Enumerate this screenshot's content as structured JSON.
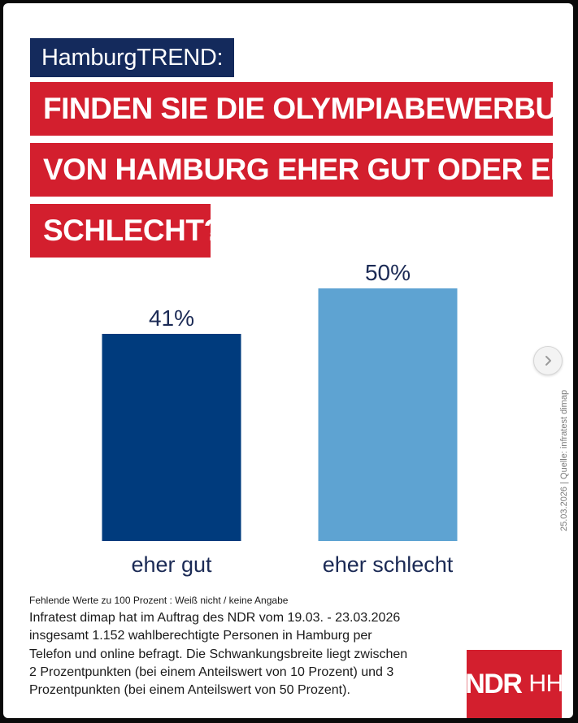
{
  "header": {
    "kicker": "HamburgTREND:",
    "question_lines": [
      "FINDEN SIE DIE OLYMPIABEWERBUNG",
      "VON HAMBURG EHER GUT ODER EHER",
      "SCHLECHT?"
    ]
  },
  "chart_data": {
    "type": "bar",
    "title": "HamburgTREND: FINDEN SIE DIE OLYMPIABEWERBUNG VON HAMBURG EHER GUT ODER EHER SCHLECHT?",
    "categories": [
      "eher gut",
      "eher schlecht"
    ],
    "values": [
      41,
      50
    ],
    "value_labels": [
      "41%",
      "50%"
    ],
    "unit": "%",
    "ylim": [
      0,
      50
    ],
    "colors": [
      "#003b7d",
      "#5ea3d2"
    ],
    "xlabel": "",
    "ylabel": "",
    "grid": false,
    "legend": "none"
  },
  "footer": {
    "footnote": "Fehlende Werte zu 100 Prozent : Weiß nicht / keine Angabe",
    "method_lines": [
      "Infratest dimap hat im Auftrag des NDR vom 19.03. - 23.03.2026",
      "insgesamt 1.152 wahlberechtigte Personen in Hamburg per",
      "Telefon und online befragt. Die Schwankungsbreite liegt zwischen",
      "2 Prozentpunkten (bei einem Anteilswert von 10 Prozent) und 3",
      "Prozentpunkten (bei einem Anteilswert von 50 Prozent)."
    ],
    "source_text": "25.03.2026 | Quelle: infratest dimap"
  },
  "logo": {
    "brand": "NDR",
    "region": "HH"
  },
  "icons": {
    "nav": "chevron-right-icon"
  }
}
